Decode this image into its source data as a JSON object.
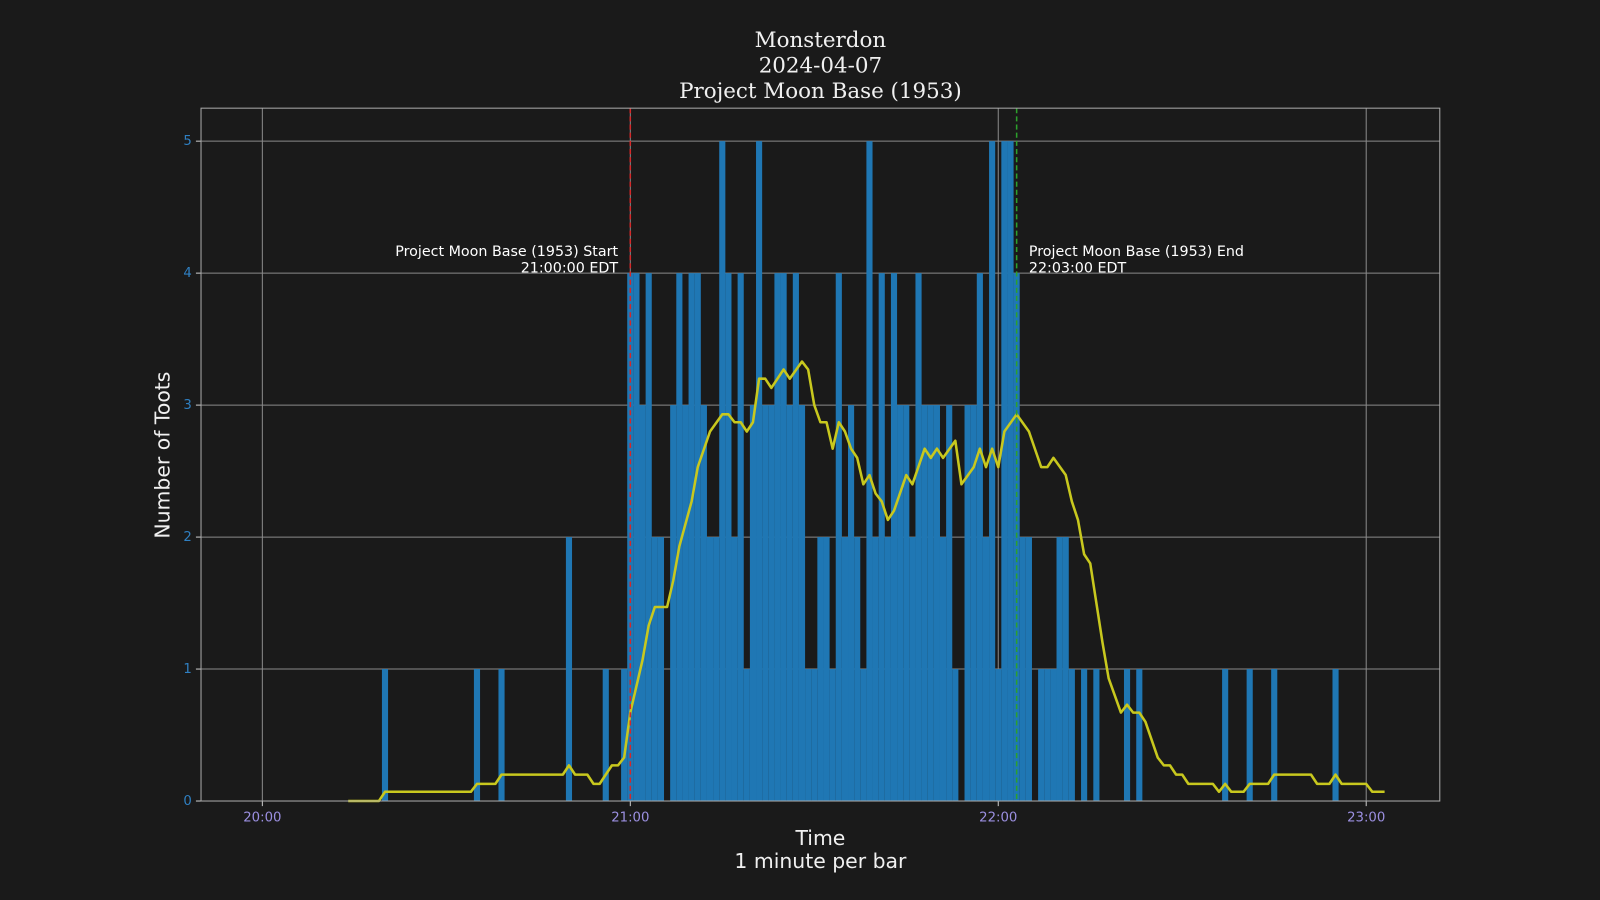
{
  "chart_data": {
    "type": "bar",
    "title": [
      "Monsterdon",
      "2024-04-07",
      "Project Moon Base (1953)"
    ],
    "xlabel": [
      "Time",
      "1 minute per bar"
    ],
    "ylabel": "Number of Toots",
    "xlim": [
      "19:50",
      "23:12"
    ],
    "xticks": [
      "20:00",
      "21:00",
      "22:00",
      "23:00"
    ],
    "ylim": [
      0,
      5.25
    ],
    "yticks": [
      0,
      1,
      2,
      3,
      4,
      5
    ],
    "grid": true,
    "color": "#1f77b4",
    "x": [
      "20:20",
      "20:35",
      "20:39",
      "20:50",
      "20:56",
      "20:59",
      "21:00",
      "21:01",
      "21:02",
      "21:03",
      "21:04",
      "21:05",
      "21:06",
      "21:07",
      "21:08",
      "21:09",
      "21:10",
      "21:11",
      "21:12",
      "21:13",
      "21:14",
      "21:15",
      "21:16",
      "21:17",
      "21:18",
      "21:19",
      "21:20",
      "21:21",
      "21:22",
      "21:23",
      "21:24",
      "21:25",
      "21:26",
      "21:27",
      "21:28",
      "21:29",
      "21:30",
      "21:31",
      "21:32",
      "21:33",
      "21:34",
      "21:35",
      "21:36",
      "21:37",
      "21:38",
      "21:39",
      "21:40",
      "21:41",
      "21:42",
      "21:43",
      "21:44",
      "21:45",
      "21:46",
      "21:47",
      "21:48",
      "21:49",
      "21:50",
      "21:51",
      "21:52",
      "21:53",
      "21:54",
      "21:55",
      "21:56",
      "21:57",
      "21:58",
      "21:59",
      "22:00",
      "22:01",
      "22:02",
      "22:03",
      "22:04",
      "22:05",
      "22:06",
      "22:07",
      "22:08",
      "22:09",
      "22:10",
      "22:11",
      "22:12",
      "22:13",
      "22:14",
      "22:15",
      "22:16",
      "22:21",
      "22:23",
      "22:37",
      "22:41",
      "22:45",
      "22:55"
    ],
    "values": [
      1,
      1,
      1,
      2,
      1,
      1,
      4,
      4,
      3,
      4,
      2,
      2,
      0,
      3,
      4,
      3,
      4,
      4,
      3,
      2,
      2,
      5,
      4,
      2,
      4,
      1,
      3,
      5,
      3,
      3,
      4,
      4,
      3,
      4,
      3,
      1,
      1,
      2,
      2,
      1,
      4,
      2,
      3,
      2,
      1,
      5,
      2,
      4,
      2,
      4,
      3,
      3,
      2,
      4,
      3,
      3,
      3,
      2,
      3,
      1,
      0,
      3,
      3,
      4,
      2,
      5,
      1,
      5,
      5,
      4,
      2,
      2,
      0,
      1,
      1,
      1,
      2,
      2,
      1,
      0,
      1,
      0,
      1,
      1,
      1,
      1,
      1,
      1,
      1
    ],
    "line": {
      "color": "#c8c81e",
      "x": [
        "20:14",
        "20:19",
        "20:20",
        "20:34",
        "20:35",
        "20:38",
        "20:39",
        "20:49",
        "20:50",
        "20:51",
        "20:53",
        "20:54",
        "20:55",
        "20:57",
        "20:58",
        "20:59",
        "21:00",
        "21:02",
        "21:03",
        "21:04",
        "21:06",
        "21:07",
        "21:08",
        "21:10",
        "21:11",
        "21:13",
        "21:15",
        "21:16",
        "21:17",
        "21:18",
        "21:19",
        "21:20",
        "21:21",
        "21:22",
        "21:23",
        "21:25",
        "21:26",
        "21:28",
        "21:29",
        "21:30",
        "21:31",
        "21:32",
        "21:33",
        "21:34",
        "21:35",
        "21:36",
        "21:37",
        "21:38",
        "21:39",
        "21:40",
        "21:41",
        "21:42",
        "21:43",
        "21:45",
        "21:46",
        "21:48",
        "21:49",
        "21:50",
        "21:51",
        "21:53",
        "21:54",
        "21:56",
        "21:57",
        "21:58",
        "21:59",
        "22:00",
        "22:01",
        "22:03",
        "22:05",
        "22:07",
        "22:08",
        "22:09",
        "22:11",
        "22:12",
        "22:13",
        "22:14",
        "22:15",
        "22:17",
        "22:18",
        "22:20",
        "22:21",
        "22:22",
        "22:23",
        "22:24",
        "22:26",
        "22:27",
        "22:28",
        "22:29",
        "22:30",
        "22:31",
        "22:35",
        "22:36",
        "22:37",
        "22:38",
        "22:40",
        "22:41",
        "22:44",
        "22:45",
        "22:51",
        "22:52",
        "22:54",
        "22:55",
        "22:56",
        "23:00",
        "23:01",
        "23:03"
      ],
      "values": [
        0,
        0,
        0.07,
        0.07,
        0.13,
        0.13,
        0.2,
        0.2,
        0.27,
        0.2,
        0.2,
        0.13,
        0.13,
        0.27,
        0.27,
        0.33,
        0.67,
        1.07,
        1.33,
        1.47,
        1.47,
        1.67,
        1.93,
        2.27,
        2.53,
        2.8,
        2.93,
        2.93,
        2.87,
        2.87,
        2.8,
        2.87,
        3.2,
        3.2,
        3.13,
        3.27,
        3.2,
        3.33,
        3.27,
        3.0,
        2.87,
        2.87,
        2.67,
        2.87,
        2.8,
        2.67,
        2.6,
        2.4,
        2.47,
        2.33,
        2.27,
        2.13,
        2.2,
        2.47,
        2.4,
        2.67,
        2.6,
        2.67,
        2.6,
        2.73,
        2.4,
        2.53,
        2.67,
        2.53,
        2.67,
        2.53,
        2.8,
        2.93,
        2.8,
        2.53,
        2.53,
        2.6,
        2.47,
        2.27,
        2.13,
        1.87,
        1.8,
        1.2,
        0.93,
        0.67,
        0.73,
        0.67,
        0.67,
        0.6,
        0.33,
        0.27,
        0.27,
        0.2,
        0.2,
        0.13,
        0.13,
        0.07,
        0.13,
        0.07,
        0.07,
        0.13,
        0.13,
        0.2,
        0.2,
        0.13,
        0.13,
        0.2,
        0.13,
        0.13,
        0.07,
        0.07
      ]
    },
    "annotations": [
      {
        "x": "21:00",
        "text": [
          "Project Moon Base (1953) Start",
          "21:00:00 EDT"
        ],
        "color": "#d62728",
        "side": "left"
      },
      {
        "x": "22:03",
        "text": [
          "Project Moon Base (1953) End",
          "22:03:00 EDT"
        ],
        "color": "#2ca02c",
        "side": "right"
      }
    ]
  }
}
